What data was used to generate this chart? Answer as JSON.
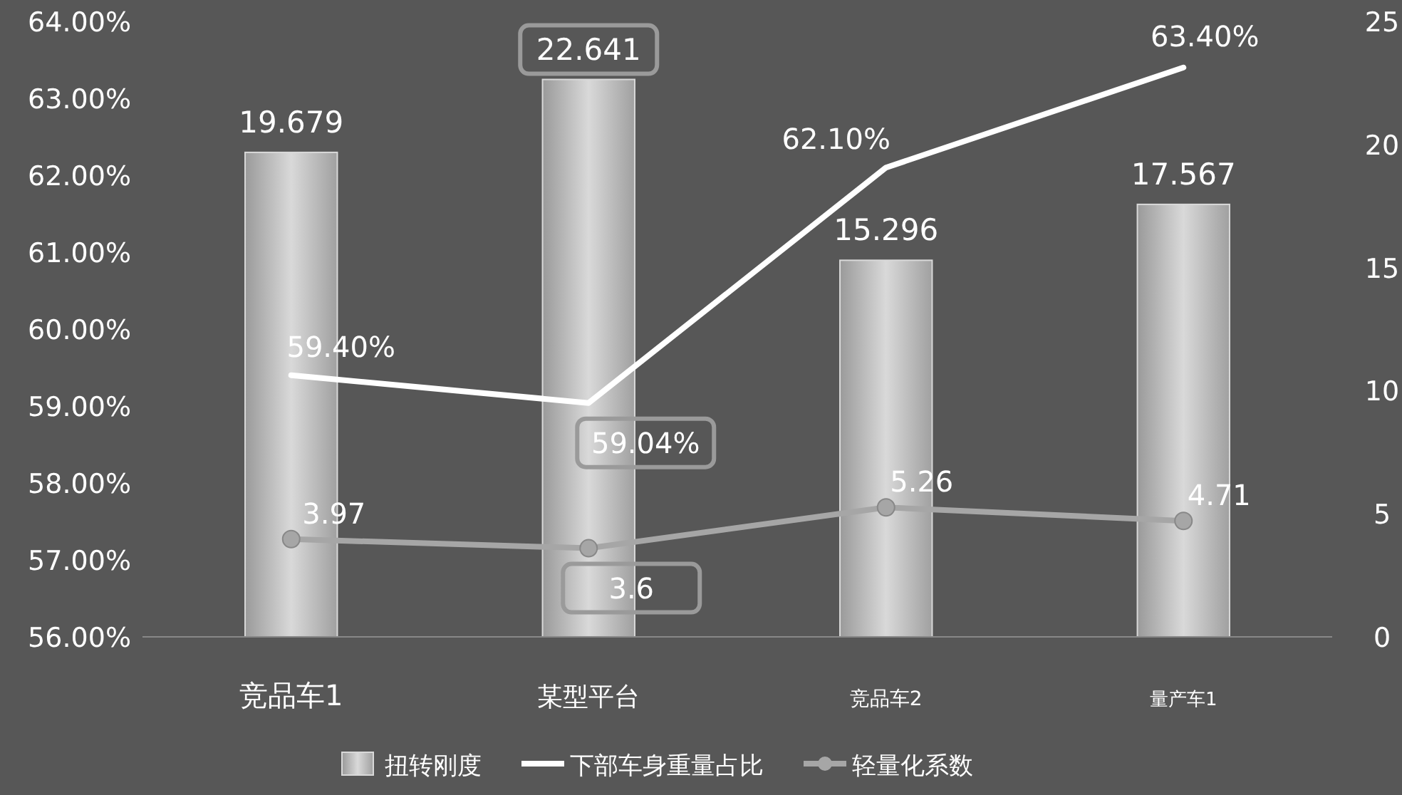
{
  "chart_data": {
    "type": "bar",
    "categories": [
      "竞品车1",
      "某型平台",
      "竞品车2",
      "量产车1"
    ],
    "series": [
      {
        "name": "扭转刚度",
        "axis": "y2",
        "color": "#d9d9d9",
        "values": [
          19.679,
          22.641,
          15.296,
          17.567
        ],
        "value_labels": [
          "19.679",
          "22.641",
          "15.296",
          "17.567"
        ]
      },
      {
        "name": "下部车身重量占比",
        "type": "line",
        "color": "#ffffff",
        "values": [
          59.4,
          59.04,
          62.1,
          63.4
        ],
        "value_labels": [
          "59.40%",
          "59.04%",
          "62.10%",
          "63.40%"
        ]
      },
      {
        "name": "轻量化系数",
        "type": "line",
        "axis": "y2",
        "color": "#a6a6a6",
        "marker": "circle",
        "values": [
          3.97,
          3.6,
          5.26,
          4.71
        ],
        "value_labels": [
          "3.97",
          "3.6",
          "5.26",
          "4.71"
        ]
      }
    ],
    "ylim": [
      56,
      64
    ],
    "yticks": [
      {
        "value": 56,
        "label": "56.00%"
      },
      {
        "value": 57,
        "label": "57.00%"
      },
      {
        "value": 58,
        "label": "58.00%"
      },
      {
        "value": 59,
        "label": "59.00%"
      },
      {
        "value": 60,
        "label": "60.00%"
      },
      {
        "value": 61,
        "label": "61.00%"
      },
      {
        "value": 62,
        "label": "62.00%"
      },
      {
        "value": 63,
        "label": "63.00%"
      },
      {
        "value": 64,
        "label": "64.00%"
      }
    ],
    "y2lim": [
      0,
      25
    ],
    "y2ticks": [
      0,
      5,
      10,
      15,
      20,
      25
    ],
    "grid": false,
    "legend": "bottom"
  }
}
